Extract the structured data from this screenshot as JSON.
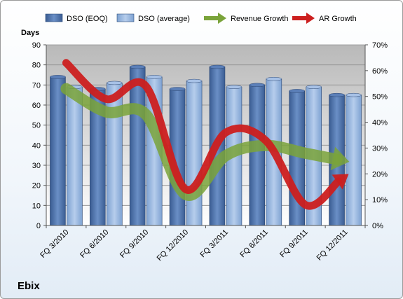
{
  "chart_data": {
    "type": "bar",
    "company": "Ebix",
    "ylabel": "Days",
    "categories": [
      "FQ 3/2010",
      "FQ 6/2010",
      "FQ 9/2010",
      "FQ 12/2010",
      "FQ 3/2011",
      "FQ 6/2011",
      "FQ 9/2011",
      "FQ 12/2011"
    ],
    "y_ticks": [
      "0",
      "10",
      "20",
      "30",
      "40",
      "50",
      "60",
      "70",
      "80",
      "90"
    ],
    "y2_ticks": [
      "0%",
      "10%",
      "20%",
      "30%",
      "40%",
      "50%",
      "60%",
      "70%"
    ],
    "ylim": [
      0,
      90
    ],
    "y2lim": [
      0,
      0.7
    ],
    "legend_position": "top",
    "series": [
      {
        "name": "DSO (EOQ)",
        "kind": "bar",
        "axis": "left",
        "color": "#4a6fa8",
        "values": [
          74,
          68,
          79,
          68,
          79,
          70,
          67,
          65
        ]
      },
      {
        "name": "DSO (average)",
        "kind": "bar",
        "axis": "right_bar",
        "color": "#8fb0dc",
        "values": [
          69,
          71,
          74,
          72,
          69,
          73,
          69,
          65
        ]
      },
      {
        "name": "Revenue Growth",
        "kind": "line",
        "axis": "right",
        "color": "#7aa33a",
        "values": [
          0.53,
          0.44,
          0.43,
          0.12,
          0.27,
          0.31,
          0.28,
          0.25
        ]
      },
      {
        "name": "AR Growth",
        "kind": "line",
        "axis": "right",
        "color": "#cc1f1f",
        "values": [
          0.63,
          0.49,
          0.54,
          0.14,
          0.36,
          0.33,
          0.08,
          0.19
        ]
      }
    ]
  }
}
